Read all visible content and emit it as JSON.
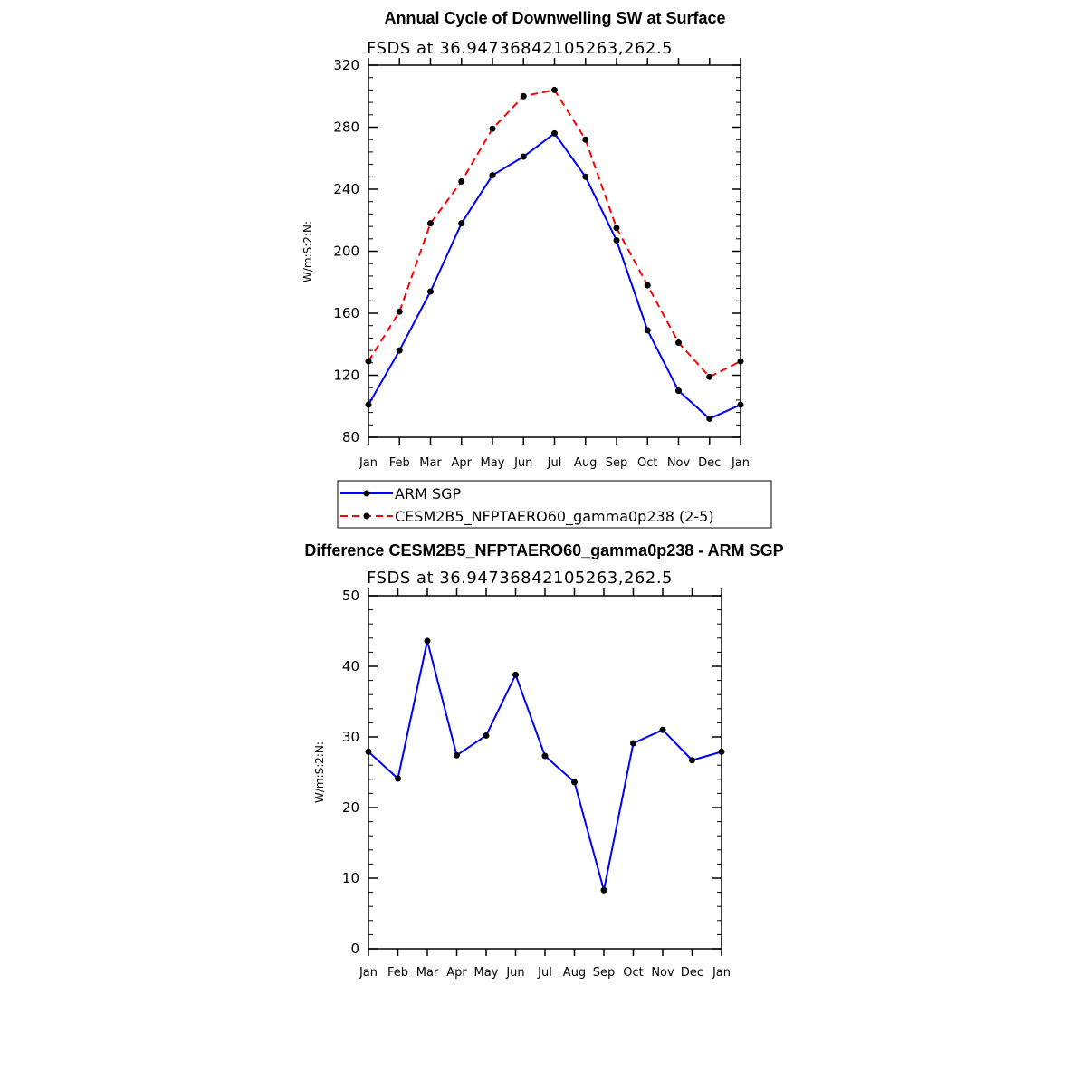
{
  "chart_data": [
    {
      "type": "line",
      "title": "Annual Cycle of Downwelling SW at Surface",
      "subtitle": "FSDS  at  36.94736842105263,262.5",
      "ylabel": "W/m:S:2:N:",
      "categories": [
        "Jan",
        "Feb",
        "Mar",
        "Apr",
        "May",
        "Jun",
        "Jul",
        "Aug",
        "Sep",
        "Oct",
        "Nov",
        "Dec",
        "Jan"
      ],
      "ylim": [
        80,
        320
      ],
      "yticks": [
        80,
        120,
        160,
        200,
        240,
        280,
        320
      ],
      "series": [
        {
          "name": "ARM SGP",
          "color": "#0000ff",
          "dash": "solid",
          "values": [
            101,
            136,
            174,
            218,
            249,
            261,
            276,
            248,
            207,
            149,
            110,
            92,
            101
          ]
        },
        {
          "name": "CESM2B5_NFPTAERO60_gamma0p238 (2-5)",
          "color": "#ff0000",
          "dash": "dashed",
          "values": [
            129,
            161,
            218,
            245,
            279,
            300,
            304,
            272,
            215,
            178,
            141,
            119,
            129
          ]
        }
      ],
      "legend": "below"
    },
    {
      "type": "line",
      "title": "Difference CESM2B5_NFPTAERO60_gamma0p238 - ARM SGP",
      "subtitle": "FSDS  at  36.94736842105263,262.5",
      "ylabel": "W/m:S:2:N:",
      "categories": [
        "Jan",
        "Feb",
        "Mar",
        "Apr",
        "May",
        "Jun",
        "Jul",
        "Aug",
        "Sep",
        "Oct",
        "Nov",
        "Dec",
        "Jan"
      ],
      "ylim": [
        0,
        50
      ],
      "yticks": [
        0,
        10,
        20,
        30,
        40,
        50
      ],
      "series": [
        {
          "color": "#0000ff",
          "dash": "solid",
          "values": [
            27.9,
            24.1,
            43.6,
            27.4,
            30.2,
            38.8,
            27.3,
            23.6,
            8.3,
            29.1,
            31.0,
            26.7,
            27.9
          ]
        }
      ]
    }
  ]
}
